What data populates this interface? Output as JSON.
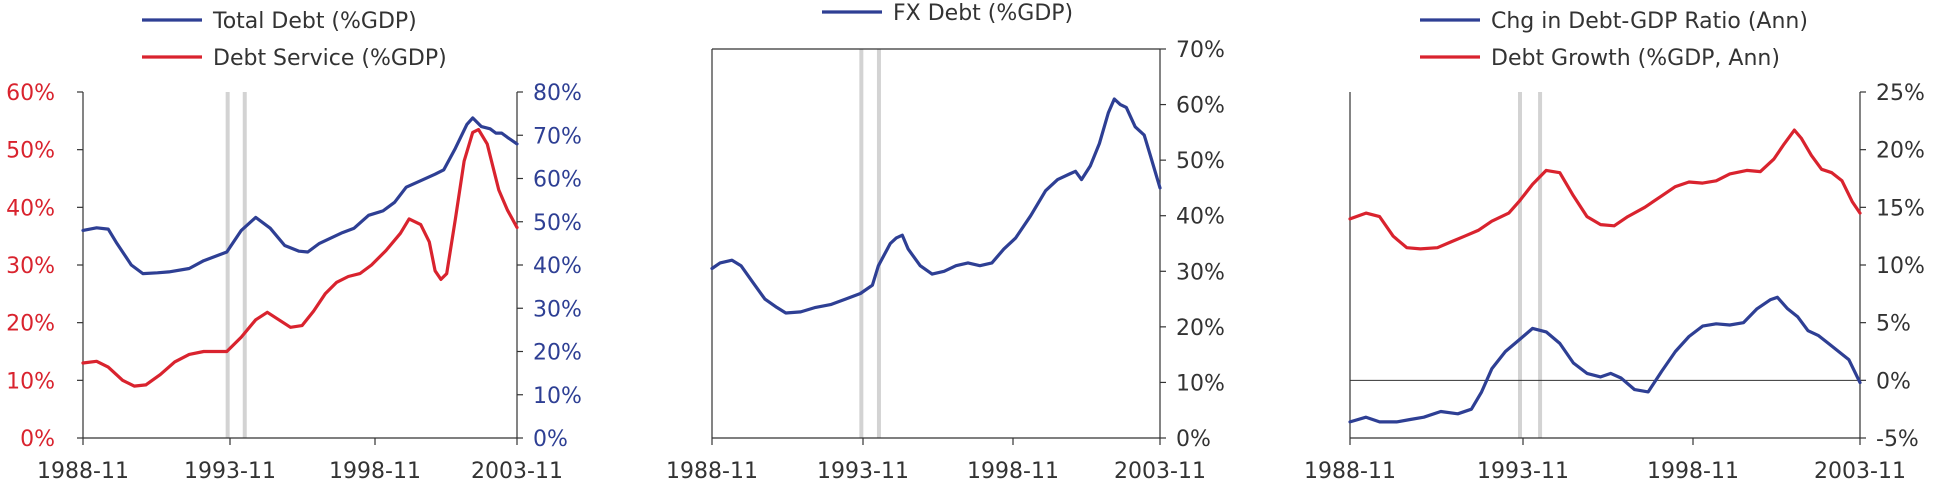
{
  "colors": {
    "blue": "#2e3f94",
    "red": "#d9232e",
    "grey": "#d3d3d3",
    "axis": "#333333"
  },
  "chart_data": [
    {
      "type": "line",
      "title": "",
      "x_ticks": [
        "1988-11",
        "1993-11",
        "1998-11",
        "2003-11"
      ],
      "xlim": [
        1988.83,
        2003.83
      ],
      "shaded_dates": [
        1993.83,
        1994.42
      ],
      "left_axis": {
        "color": "red",
        "ticks": [
          "0%",
          "10%",
          "20%",
          "30%",
          "40%",
          "50%",
          "60%"
        ],
        "ylim": [
          0,
          60
        ]
      },
      "right_axis": {
        "color": "blue",
        "ticks": [
          "0%",
          "10%",
          "20%",
          "30%",
          "40%",
          "50%",
          "60%",
          "70%",
          "80%"
        ],
        "ylim": [
          0,
          80
        ]
      },
      "legend": [
        "Total Debt (%GDP)",
        "Debt Service (%GDP)"
      ],
      "series": [
        {
          "name": "Total Debt (%GDP)",
          "axis": "right",
          "color": "blue",
          "points": [
            [
              1988.83,
              48
            ],
            [
              1989.3,
              48.6
            ],
            [
              1989.7,
              48.3
            ],
            [
              1990.0,
              45
            ],
            [
              1990.5,
              40
            ],
            [
              1990.9,
              38
            ],
            [
              1991.4,
              38.2
            ],
            [
              1991.8,
              38.4
            ],
            [
              1992.5,
              39.2
            ],
            [
              1993.0,
              41
            ],
            [
              1993.8,
              43
            ],
            [
              1994.3,
              48
            ],
            [
              1994.8,
              51
            ],
            [
              1995.3,
              48.5
            ],
            [
              1995.8,
              44.5
            ],
            [
              1996.3,
              43.2
            ],
            [
              1996.6,
              43
            ],
            [
              1997.0,
              45
            ],
            [
              1997.8,
              47.5
            ],
            [
              1998.2,
              48.5
            ],
            [
              1998.7,
              51.5
            ],
            [
              1999.2,
              52.5
            ],
            [
              1999.6,
              54.5
            ],
            [
              2000.0,
              58
            ],
            [
              2000.5,
              59.5
            ],
            [
              2001.0,
              61
            ],
            [
              2001.3,
              62
            ],
            [
              2001.7,
              67
            ],
            [
              2002.1,
              72.5
            ],
            [
              2002.3,
              74
            ],
            [
              2002.6,
              72
            ],
            [
              2002.9,
              71.5
            ],
            [
              2003.1,
              70.5
            ],
            [
              2003.3,
              70.5
            ],
            [
              2003.5,
              69.5
            ],
            [
              2003.83,
              68
            ]
          ]
        },
        {
          "name": "Debt Service (%GDP)",
          "axis": "left",
          "color": "red",
          "points": [
            [
              1988.83,
              13
            ],
            [
              1989.3,
              13.3
            ],
            [
              1989.7,
              12.3
            ],
            [
              1990.2,
              10
            ],
            [
              1990.6,
              9
            ],
            [
              1991.0,
              9.2
            ],
            [
              1991.5,
              11
            ],
            [
              1992.0,
              13.2
            ],
            [
              1992.5,
              14.5
            ],
            [
              1993.0,
              15
            ],
            [
              1993.8,
              15
            ],
            [
              1994.3,
              17.5
            ],
            [
              1994.8,
              20.5
            ],
            [
              1995.2,
              21.8
            ],
            [
              1995.6,
              20.5
            ],
            [
              1996.0,
              19.2
            ],
            [
              1996.4,
              19.5
            ],
            [
              1996.8,
              22
            ],
            [
              1997.2,
              25
            ],
            [
              1997.6,
              27
            ],
            [
              1998.0,
              28
            ],
            [
              1998.4,
              28.5
            ],
            [
              1998.8,
              30
            ],
            [
              1999.3,
              32.5
            ],
            [
              1999.8,
              35.5
            ],
            [
              2000.1,
              38
            ],
            [
              2000.5,
              37
            ],
            [
              2000.8,
              34
            ],
            [
              2001.0,
              29
            ],
            [
              2001.2,
              27.5
            ],
            [
              2001.4,
              28.5
            ],
            [
              2001.7,
              38
            ],
            [
              2002.0,
              48
            ],
            [
              2002.3,
              53
            ],
            [
              2002.5,
              53.5
            ],
            [
              2002.8,
              51
            ],
            [
              2003.0,
              47
            ],
            [
              2003.2,
              43
            ],
            [
              2003.5,
              39.5
            ],
            [
              2003.83,
              36.5
            ]
          ]
        }
      ]
    },
    {
      "type": "line",
      "title": "",
      "x_ticks": [
        "1988-11",
        "1993-11",
        "1998-11",
        "2003-11"
      ],
      "xlim": [
        1988.83,
        2003.83
      ],
      "shaded_dates": [
        1993.83,
        1994.42
      ],
      "right_axis": {
        "color": "axis",
        "ticks": [
          "0%",
          "10%",
          "20%",
          "30%",
          "40%",
          "50%",
          "60%",
          "70%"
        ],
        "ylim": [
          0,
          70
        ]
      },
      "legend": [
        "FX Debt (%GDP)"
      ],
      "series": [
        {
          "name": "FX Debt (%GDP)",
          "axis": "right",
          "color": "blue",
          "points": [
            [
              1988.83,
              30.5
            ],
            [
              1989.1,
              31.5
            ],
            [
              1989.5,
              32
            ],
            [
              1989.8,
              31
            ],
            [
              1990.2,
              28
            ],
            [
              1990.6,
              25
            ],
            [
              1991.0,
              23.5
            ],
            [
              1991.3,
              22.5
            ],
            [
              1991.8,
              22.7
            ],
            [
              1992.3,
              23.5
            ],
            [
              1992.8,
              24
            ],
            [
              1993.3,
              25
            ],
            [
              1993.8,
              26
            ],
            [
              1994.2,
              27.5
            ],
            [
              1994.4,
              31
            ],
            [
              1994.8,
              35
            ],
            [
              1995.0,
              36
            ],
            [
              1995.2,
              36.5
            ],
            [
              1995.4,
              34
            ],
            [
              1995.8,
              31
            ],
            [
              1996.2,
              29.5
            ],
            [
              1996.6,
              30
            ],
            [
              1997.0,
              31
            ],
            [
              1997.4,
              31.5
            ],
            [
              1997.8,
              31
            ],
            [
              1998.2,
              31.5
            ],
            [
              1998.6,
              34
            ],
            [
              1999.0,
              36
            ],
            [
              1999.5,
              40
            ],
            [
              2000.0,
              44.5
            ],
            [
              2000.4,
              46.5
            ],
            [
              2000.8,
              47.5
            ],
            [
              2001.0,
              48
            ],
            [
              2001.2,
              46.5
            ],
            [
              2001.5,
              49
            ],
            [
              2001.8,
              53
            ],
            [
              2002.1,
              58.5
            ],
            [
              2002.3,
              61
            ],
            [
              2002.5,
              60
            ],
            [
              2002.7,
              59.5
            ],
            [
              2003.0,
              56
            ],
            [
              2003.3,
              54.5
            ],
            [
              2003.5,
              51
            ],
            [
              2003.83,
              45
            ]
          ]
        }
      ]
    },
    {
      "type": "line",
      "title": "",
      "x_ticks": [
        "1988-11",
        "1993-11",
        "1998-11",
        "2003-11"
      ],
      "xlim": [
        1988.83,
        2003.83
      ],
      "shaded_dates": [
        1993.83,
        1994.42
      ],
      "zero_line": 0,
      "right_axis": {
        "color": "axis",
        "ticks": [
          "-5%",
          "0%",
          "5%",
          "10%",
          "15%",
          "20%",
          "25%"
        ],
        "ylim": [
          -5,
          25
        ]
      },
      "legend": [
        "Chg in Debt-GDP Ratio (Ann)",
        "Debt Growth (%GDP, Ann)"
      ],
      "series": [
        {
          "name": "Chg in Debt-GDP Ratio (Ann)",
          "axis": "right",
          "color": "blue",
          "points": [
            [
              1988.83,
              -3.6
            ],
            [
              1989.3,
              -3.2
            ],
            [
              1989.7,
              -3.6
            ],
            [
              1990.2,
              -3.6
            ],
            [
              1990.6,
              -3.4
            ],
            [
              1991.0,
              -3.2
            ],
            [
              1991.5,
              -2.7
            ],
            [
              1992.0,
              -2.9
            ],
            [
              1992.4,
              -2.5
            ],
            [
              1992.7,
              -1
            ],
            [
              1993.0,
              1
            ],
            [
              1993.4,
              2.5
            ],
            [
              1993.8,
              3.5
            ],
            [
              1994.2,
              4.5
            ],
            [
              1994.6,
              4.2
            ],
            [
              1995.0,
              3.2
            ],
            [
              1995.4,
              1.5
            ],
            [
              1995.8,
              0.6
            ],
            [
              1996.2,
              0.3
            ],
            [
              1996.5,
              0.6
            ],
            [
              1996.8,
              0.2
            ],
            [
              1997.2,
              -0.8
            ],
            [
              1997.6,
              -1
            ],
            [
              1998.0,
              0.8
            ],
            [
              1998.4,
              2.5
            ],
            [
              1998.8,
              3.8
            ],
            [
              1999.2,
              4.7
            ],
            [
              1999.6,
              4.9
            ],
            [
              2000.0,
              4.8
            ],
            [
              2000.4,
              5.0
            ],
            [
              2000.8,
              6.2
            ],
            [
              2001.2,
              7.0
            ],
            [
              2001.4,
              7.2
            ],
            [
              2001.7,
              6.2
            ],
            [
              2002.0,
              5.5
            ],
            [
              2002.3,
              4.3
            ],
            [
              2002.6,
              3.9
            ],
            [
              2002.9,
              3.2
            ],
            [
              2003.2,
              2.5
            ],
            [
              2003.5,
              1.8
            ],
            [
              2003.83,
              -0.2
            ]
          ]
        },
        {
          "name": "Debt Growth (%GDP, Ann)",
          "axis": "right",
          "color": "red",
          "points": [
            [
              1988.83,
              14
            ],
            [
              1989.3,
              14.5
            ],
            [
              1989.7,
              14.2
            ],
            [
              1990.1,
              12.5
            ],
            [
              1990.5,
              11.5
            ],
            [
              1990.9,
              11.4
            ],
            [
              1991.4,
              11.5
            ],
            [
              1991.8,
              12
            ],
            [
              1992.2,
              12.5
            ],
            [
              1992.6,
              13
            ],
            [
              1993.0,
              13.8
            ],
            [
              1993.5,
              14.5
            ],
            [
              1993.8,
              15.5
            ],
            [
              1994.2,
              17
            ],
            [
              1994.6,
              18.2
            ],
            [
              1995.0,
              18
            ],
            [
              1995.4,
              16
            ],
            [
              1995.8,
              14.2
            ],
            [
              1996.2,
              13.5
            ],
            [
              1996.6,
              13.4
            ],
            [
              1997.0,
              14.2
            ],
            [
              1997.5,
              15
            ],
            [
              1998.0,
              16
            ],
            [
              1998.4,
              16.8
            ],
            [
              1998.8,
              17.2
            ],
            [
              1999.2,
              17.1
            ],
            [
              1999.6,
              17.3
            ],
            [
              2000.0,
              17.9
            ],
            [
              2000.5,
              18.2
            ],
            [
              2000.9,
              18.1
            ],
            [
              2001.3,
              19.2
            ],
            [
              2001.6,
              20.5
            ],
            [
              2001.9,
              21.7
            ],
            [
              2002.1,
              21.0
            ],
            [
              2002.4,
              19.5
            ],
            [
              2002.7,
              18.3
            ],
            [
              2003.0,
              18
            ],
            [
              2003.3,
              17.3
            ],
            [
              2003.6,
              15.5
            ],
            [
              2003.83,
              14.5
            ]
          ]
        }
      ]
    }
  ]
}
